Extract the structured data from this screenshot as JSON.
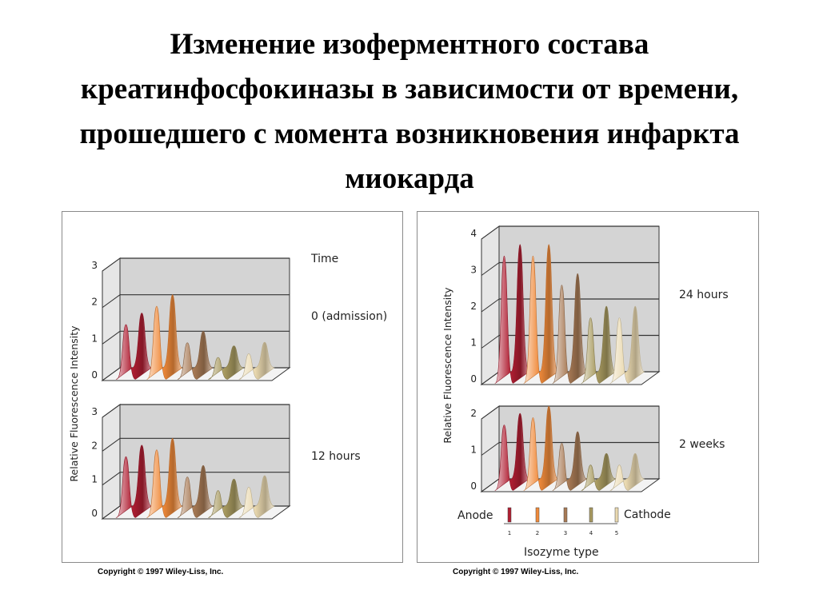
{
  "title": "Изменение изоферментного состава креатинфосфокиназы в зависимости от времени, прошедшего с момента возникновения инфаркта миокарда",
  "copyright": "Copyright © 1997 Wiley-Liss, Inc.",
  "y_axis_label": "Relative Fluorescence Intensity",
  "time_heading": "Time",
  "x_axis_label": "Isozyme type",
  "anode_label": "Anode",
  "cathode_label": "Cathode",
  "isozyme_numbers": [
    "1",
    "2",
    "3",
    "4",
    "5"
  ],
  "colors": {
    "peak1": "#b01e32",
    "peak2": "#f08a3a",
    "peak3": "#a87a55",
    "peak4": "#a89a60",
    "peak5": "#ead9b0",
    "grid": "#333333",
    "wall": "#d4d4d4"
  },
  "chart_data": [
    {
      "type": "area",
      "label": "0 (admission)",
      "ylim": [
        0,
        3
      ],
      "yticks": [
        "0",
        "1",
        "2",
        "3"
      ],
      "peaks": [
        1.5,
        2.0,
        1.0,
        0.6,
        0.7
      ]
    },
    {
      "type": "area",
      "label": "12 hours",
      "ylim": [
        0,
        3
      ],
      "yticks": [
        "0",
        "1",
        "2",
        "3"
      ],
      "peaks": [
        1.8,
        2.0,
        1.2,
        0.8,
        0.9
      ]
    },
    {
      "type": "area",
      "label": "24 hours",
      "ylim": [
        0,
        4
      ],
      "yticks": [
        "0",
        "1",
        "2",
        "3",
        "4"
      ],
      "peaks": [
        3.5,
        3.5,
        2.7,
        1.8,
        1.8
      ]
    },
    {
      "type": "area",
      "label": "2 weeks",
      "ylim": [
        0,
        2
      ],
      "yticks": [
        "0",
        "1",
        "2"
      ],
      "peaks": [
        1.8,
        2.0,
        1.3,
        0.7,
        0.7
      ]
    }
  ]
}
